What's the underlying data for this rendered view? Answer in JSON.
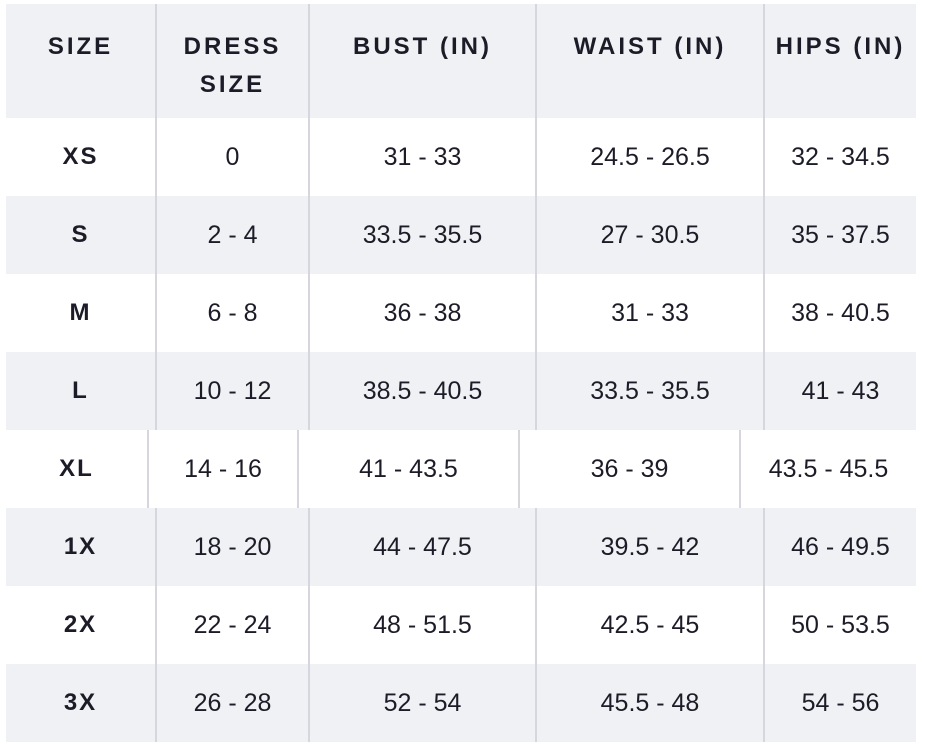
{
  "table": {
    "headers": [
      "SIZE",
      "DRESS SIZE",
      "BUST (IN)",
      "WAIST (IN)",
      "HIPS (IN)"
    ],
    "rows": [
      [
        "XS",
        "0",
        "31 - 33",
        "24.5 - 26.5",
        "32 - 34.5"
      ],
      [
        "S",
        "2 - 4",
        "33.5 - 35.5",
        "27 - 30.5",
        "35 - 37.5"
      ],
      [
        "M",
        "6 - 8",
        "36 - 38",
        "31 - 33",
        "38 - 40.5"
      ],
      [
        "L",
        "10 - 12",
        "38.5 - 40.5",
        "33.5 - 35.5",
        "41 - 43"
      ],
      [
        "XL",
        "14 - 16",
        "41 - 43.5",
        "36 - 39",
        "43.5 - 45.5"
      ],
      [
        "1X",
        "18 - 20",
        "44 - 47.5",
        "39.5 - 42",
        "46 - 49.5"
      ],
      [
        "2X",
        "22 - 24",
        "48 - 51.5",
        "42.5 - 45",
        "50 - 53.5"
      ],
      [
        "3X",
        "26 - 28",
        "52 - 54",
        "45.5 - 48",
        "54 - 56"
      ]
    ]
  }
}
